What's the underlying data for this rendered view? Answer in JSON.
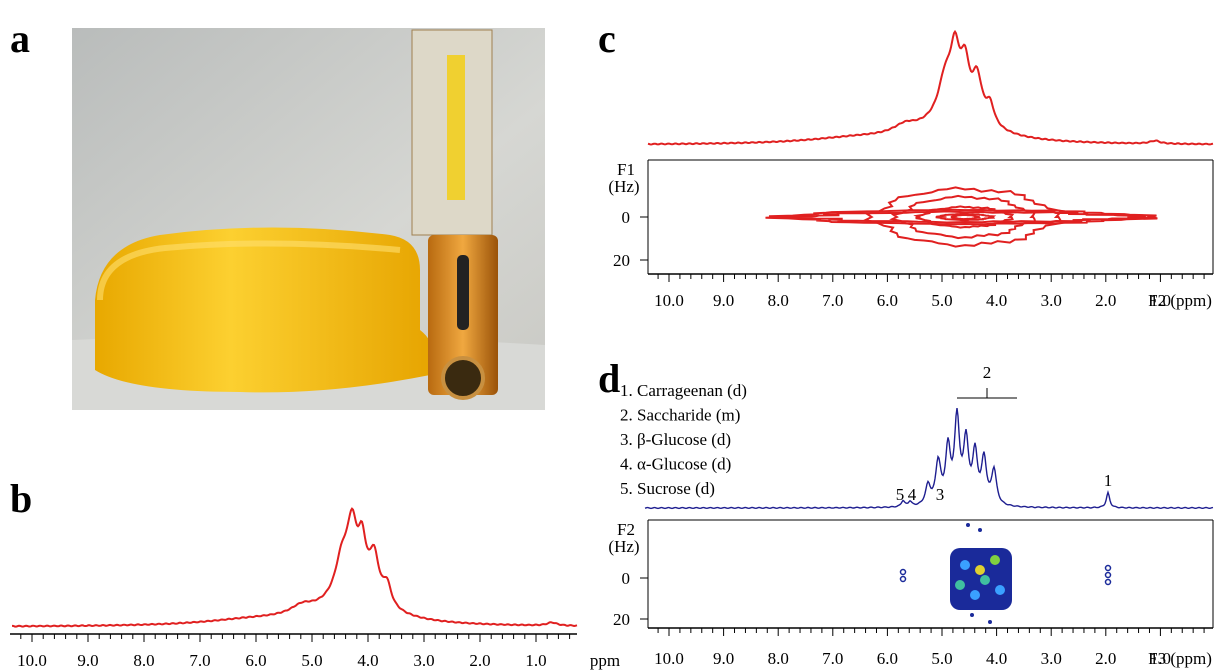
{
  "panels": {
    "a": {
      "label": "a"
    },
    "b": {
      "label": "b",
      "xticks": [
        "10.0",
        "9.0",
        "8.0",
        "7.0",
        "6.0",
        "5.0",
        "4.0",
        "3.0",
        "2.0",
        "1.0"
      ],
      "xlabel": "ppm"
    },
    "c": {
      "label": "c",
      "ylabel": "F1",
      "yunit": "(Hz)",
      "yticks": [
        0,
        20
      ],
      "xticks": [
        "10.0",
        "9.0",
        "8.0",
        "7.0",
        "6.0",
        "5.0",
        "4.0",
        "3.0",
        "2.0",
        "1.0"
      ],
      "xlabel": "F2 (ppm)"
    },
    "d": {
      "label": "d",
      "legend": [
        "1. Carrageenan (d)",
        "2. Saccharide (m)",
        "3. β-Glucose (d)",
        "4. α-Glucose (d)",
        "5. Sucrose (d)"
      ],
      "peak_labels": [
        "2",
        "1",
        "3",
        "4",
        "5"
      ],
      "ylabel": "F2",
      "yunit": "(Hz)",
      "yticks": [
        0,
        20
      ],
      "xticks": [
        "10.0",
        "9.0",
        "8.0",
        "7.0",
        "6.0",
        "5.0",
        "4.0",
        "3.0",
        "2.0",
        "1.0"
      ],
      "xlabel": "F3 (ppm)"
    }
  }
}
